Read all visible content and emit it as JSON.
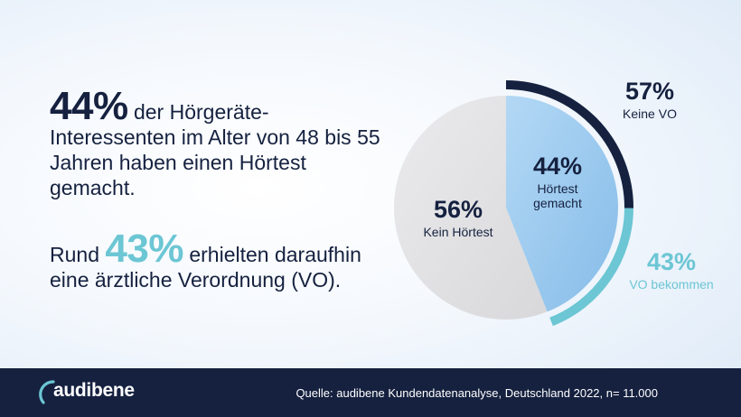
{
  "headline": {
    "big": "44%",
    "rest": "der Hörgeräte-Interessenten im Alter von 48 bis 55 Jahren haben einen Hörtest gemacht."
  },
  "subline": {
    "prefix": "Rund",
    "big": "43%",
    "rest": "erhielten daraufhin eine ärztliche Verordnung (VO)."
  },
  "chart_data": {
    "type": "pie",
    "slices": [
      {
        "label": "Hörtest gemacht",
        "pct_text": "44%",
        "value": 44,
        "color": "#9ccaf0"
      },
      {
        "label": "Kein Hörtest",
        "pct_text": "56%",
        "value": 56,
        "color": "#e1e1e3"
      }
    ],
    "outer_ring": [
      {
        "label": "Keine VO",
        "pct_text": "57%",
        "value": 57,
        "color": "#15213f"
      },
      {
        "label": "VO bekommen",
        "pct_text": "43%",
        "value": 43,
        "color": "#6cc6d4"
      }
    ]
  },
  "footer": {
    "brand": "audibene",
    "source": "Quelle: audibene Kundendatenanalyse, Deutschland 2022, n= 11.000",
    "background": "#15213f"
  }
}
